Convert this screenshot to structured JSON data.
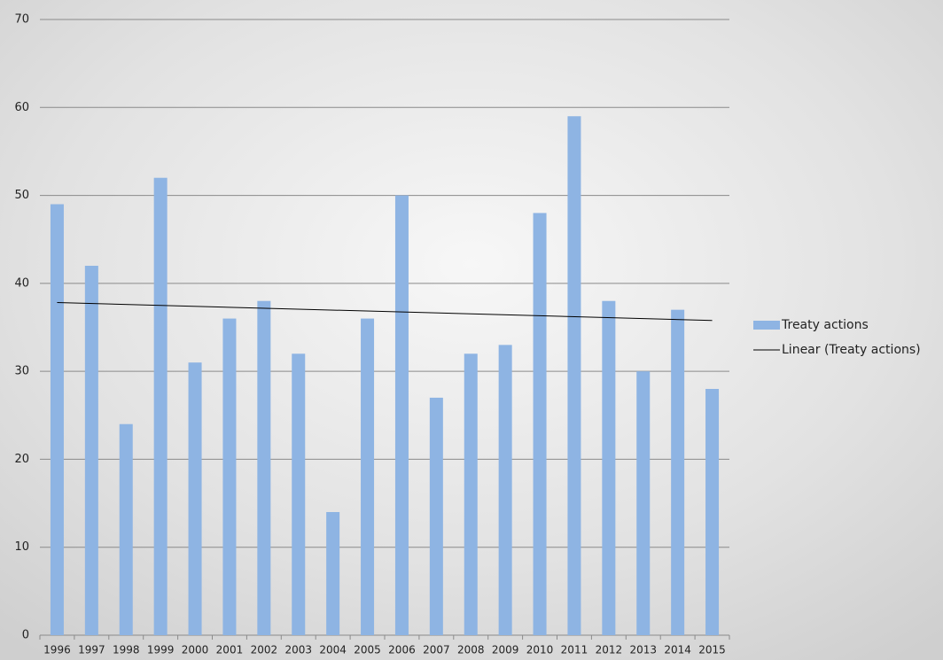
{
  "chart_data": {
    "type": "bar",
    "categories": [
      "1996",
      "1997",
      "1998",
      "1999",
      "2000",
      "2001",
      "2002",
      "2003",
      "2004",
      "2005",
      "2006",
      "2007",
      "2008",
      "2009",
      "2010",
      "2011",
      "2012",
      "2013",
      "2014",
      "2015"
    ],
    "series": [
      {
        "name": "Treaty actions",
        "color": "#8eb4e3",
        "values": [
          49,
          42,
          24,
          52,
          31,
          36,
          38,
          32,
          14,
          36,
          50,
          27,
          32,
          33,
          48,
          59,
          38,
          30,
          37,
          28
        ]
      }
    ],
    "trendline": {
      "name": "Linear (Treaty actions)",
      "color": "#000000"
    },
    "ylim": [
      0,
      70
    ],
    "yticks": [
      0,
      10,
      20,
      30,
      40,
      50,
      60,
      70
    ],
    "grid": true
  }
}
